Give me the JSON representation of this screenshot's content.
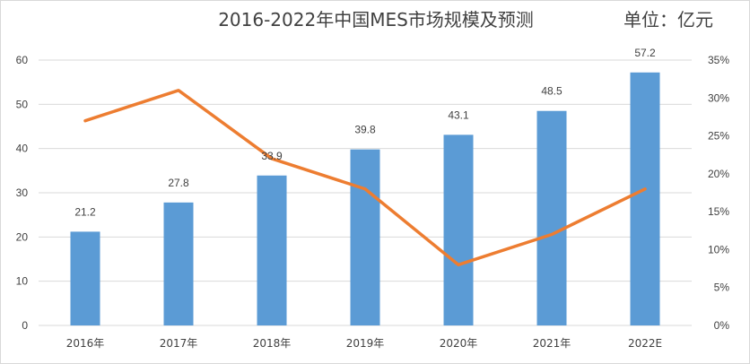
{
  "chart_data": {
    "type": "bar",
    "title": "2016-2022年中国MES市场规模及预测",
    "unit_label": "单位：亿元",
    "categories": [
      "2016年",
      "2017年",
      "2018年",
      "2019年",
      "2020年",
      "2021年",
      "2022E"
    ],
    "series": [
      {
        "type": "bar",
        "axis": "left",
        "values": [
          21.2,
          27.8,
          33.9,
          39.8,
          43.1,
          48.5,
          57.2
        ],
        "data_labels": [
          "21.2",
          "27.8",
          "33.9",
          "39.8",
          "43.1",
          "48.5",
          "57.2"
        ],
        "color": "#5b9bd5"
      },
      {
        "type": "line",
        "axis": "right",
        "values": [
          27,
          31,
          22,
          18,
          8,
          12,
          18
        ],
        "color": "#ed7d31"
      }
    ],
    "y_left": {
      "min": 0,
      "max": 60,
      "ticks": [
        "0",
        "10",
        "20",
        "30",
        "40",
        "50",
        "60"
      ]
    },
    "y_right": {
      "min": 0,
      "max": 35,
      "ticks": [
        "0%",
        "5%",
        "10%",
        "15%",
        "20%",
        "25%",
        "30%",
        "35%"
      ]
    },
    "grid": true,
    "gridline_color": "#d9d9d9",
    "legend": "none"
  }
}
